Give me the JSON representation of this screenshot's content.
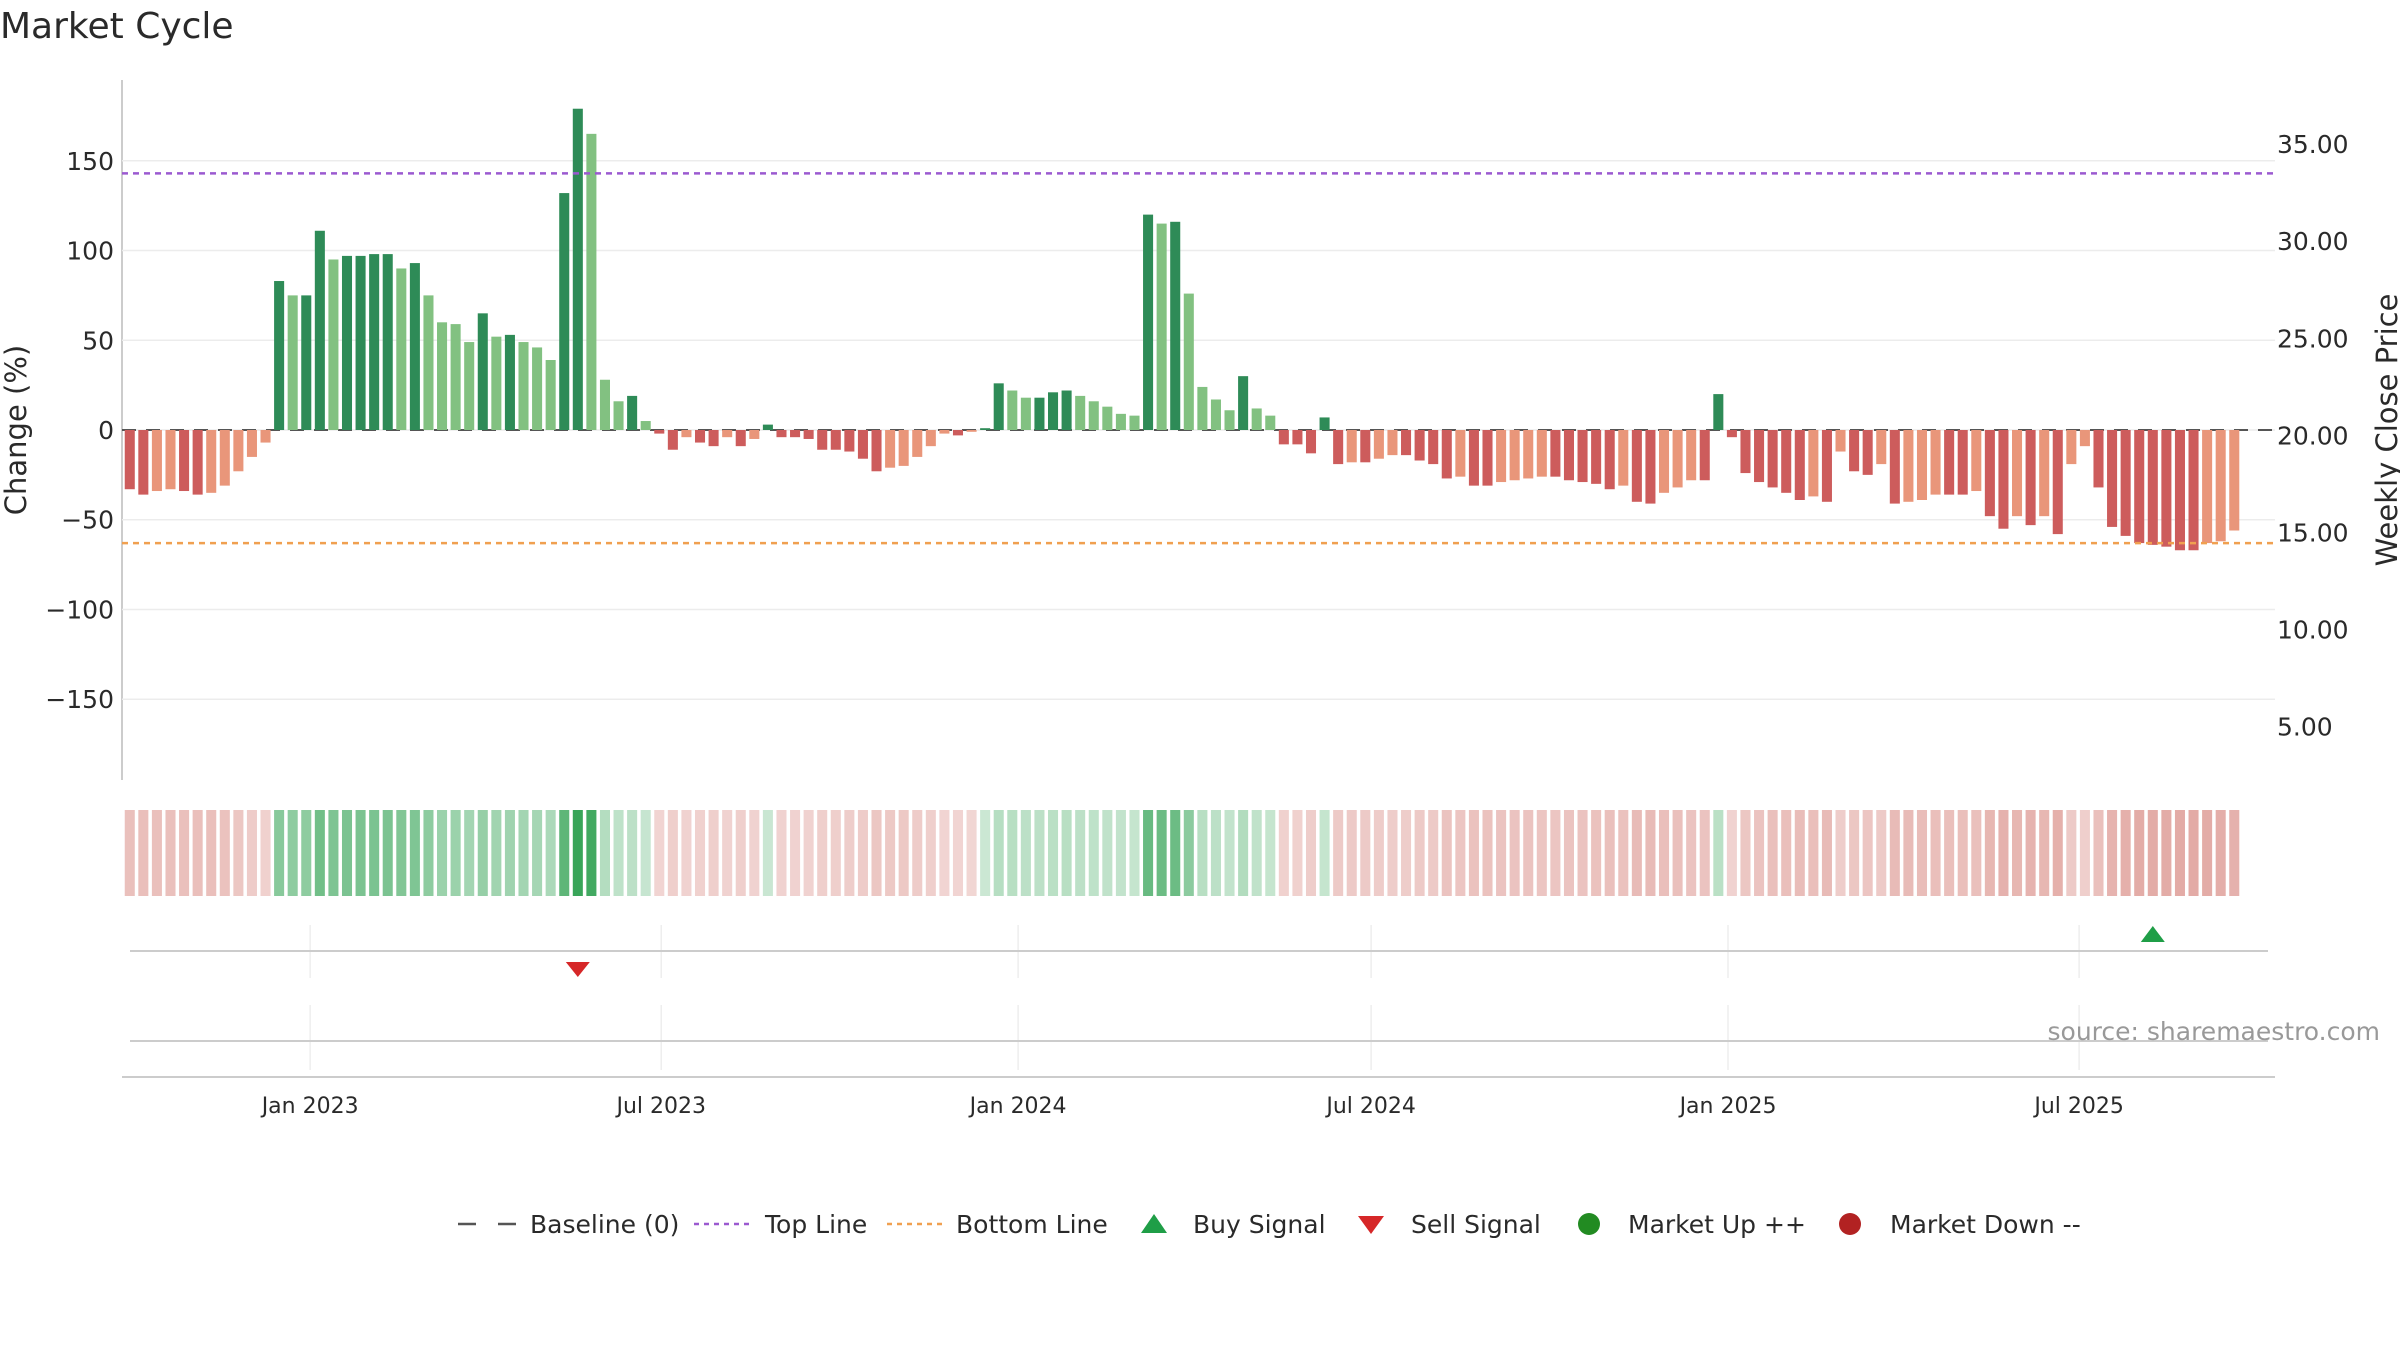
{
  "chart_data": {
    "type": "bar",
    "title": "Market Cycle",
    "ylabel": "Change (%)",
    "y2label": "Weekly Close Price",
    "ylim": [
      -195,
      195
    ],
    "y2lim": [
      2.25,
      38.3
    ],
    "yticks": [
      150,
      100,
      50,
      0,
      -50,
      -100,
      -150
    ],
    "ytick_labels": [
      "150",
      "100",
      "50",
      "0",
      "−50",
      "−100",
      "−150"
    ],
    "y2ticks": [
      35,
      30,
      25,
      20,
      15,
      10,
      5
    ],
    "y2tick_labels": [
      "35.00",
      "30.00",
      "25.00",
      "20.00",
      "15.00",
      "10.00",
      "5.00"
    ],
    "xlim": [
      "2022-09-26",
      "2025-10-10"
    ],
    "xticks": [
      "2023-01-01",
      "2023-07-01",
      "2024-01-01",
      "2024-07-01",
      "2025-01-01",
      "2025-07-01"
    ],
    "xtick_labels": [
      "Jan 2023",
      "Jul 2023",
      "Jan 2024",
      "Jul 2024",
      "Jan 2025",
      "Jul 2025"
    ],
    "first_week": "2022-09-30",
    "reference_lines": {
      "baseline": 0,
      "top_line": 143,
      "bottom_line": -63
    },
    "series": [
      {
        "name": "Change (%)",
        "values": [
          -33,
          -36,
          -34,
          -33,
          -34,
          -36,
          -35,
          -31,
          -23,
          -15,
          -7,
          83,
          75,
          75,
          111,
          95,
          97,
          97,
          98,
          98,
          90,
          93,
          75,
          60,
          59,
          49,
          65,
          52,
          53,
          49,
          46,
          39,
          132,
          179,
          165,
          28,
          16,
          19,
          5,
          -2,
          -11,
          -4,
          -7,
          -9,
          -4,
          -9,
          -5,
          3,
          -4,
          -4,
          -5,
          -11,
          -11,
          -12,
          -16,
          -23,
          -21,
          -20,
          -15,
          -9,
          -2,
          -3,
          -1,
          1,
          26,
          22,
          18,
          18,
          21,
          22,
          19,
          16,
          13,
          9,
          8,
          120,
          115,
          116,
          76,
          24,
          17,
          11,
          30,
          12,
          8,
          -8,
          -8,
          -13,
          7,
          -19,
          -18,
          -18,
          -16,
          -14,
          -14,
          -17,
          -19,
          -27,
          -26,
          -31,
          -31,
          -29,
          -28,
          -27,
          -26,
          -26,
          -28,
          -29,
          -30,
          -33,
          -31,
          -40,
          -41,
          -35,
          -32,
          -28,
          -28,
          20,
          -4,
          -24,
          -29,
          -32,
          -35,
          -39,
          -37,
          -40,
          -12,
          -23,
          -25,
          -19,
          -41,
          -40,
          -39,
          -36,
          -36,
          -36,
          -34,
          -48,
          -55,
          -48,
          -53,
          -48,
          -58,
          -19,
          -9,
          -32,
          -54,
          -59,
          -63,
          -64,
          -65,
          -67,
          -67,
          -63,
          -62,
          -56
        ]
      }
    ],
    "color_rule": "dark green = above 0 and rising, light green = above 0 and falling, dark red = below 0 and falling, salmon = below 0 and rising",
    "colors": {
      "pos_strong": "#2e8b57",
      "pos_weak": "#82c181",
      "neg_strong": "#cd5c5c",
      "neg_weak": "#e9967a",
      "top_line": "#9b59d0",
      "bottom_line": "#f0a050",
      "buy": "#1f9e47",
      "sell": "#d62728",
      "market_up": "#228b22",
      "market_down": "#b22222",
      "baseline": "#555555"
    },
    "signals": [
      {
        "type": "sell",
        "date": "2023-05-19"
      },
      {
        "type": "buy",
        "date": "2025-08-08"
      }
    ],
    "annotation": "source: sharemaestro.com",
    "legend_position": "bottom-center",
    "legend": [
      {
        "key": "baseline",
        "label": "Baseline (0)"
      },
      {
        "key": "top",
        "label": "Top Line"
      },
      {
        "key": "bottom",
        "label": "Bottom Line"
      },
      {
        "key": "buy",
        "label": "Buy Signal"
      },
      {
        "key": "sell",
        "label": "Sell Signal"
      },
      {
        "key": "up",
        "label": "Market Up ++"
      },
      {
        "key": "down",
        "label": "Market Down --"
      }
    ]
  }
}
